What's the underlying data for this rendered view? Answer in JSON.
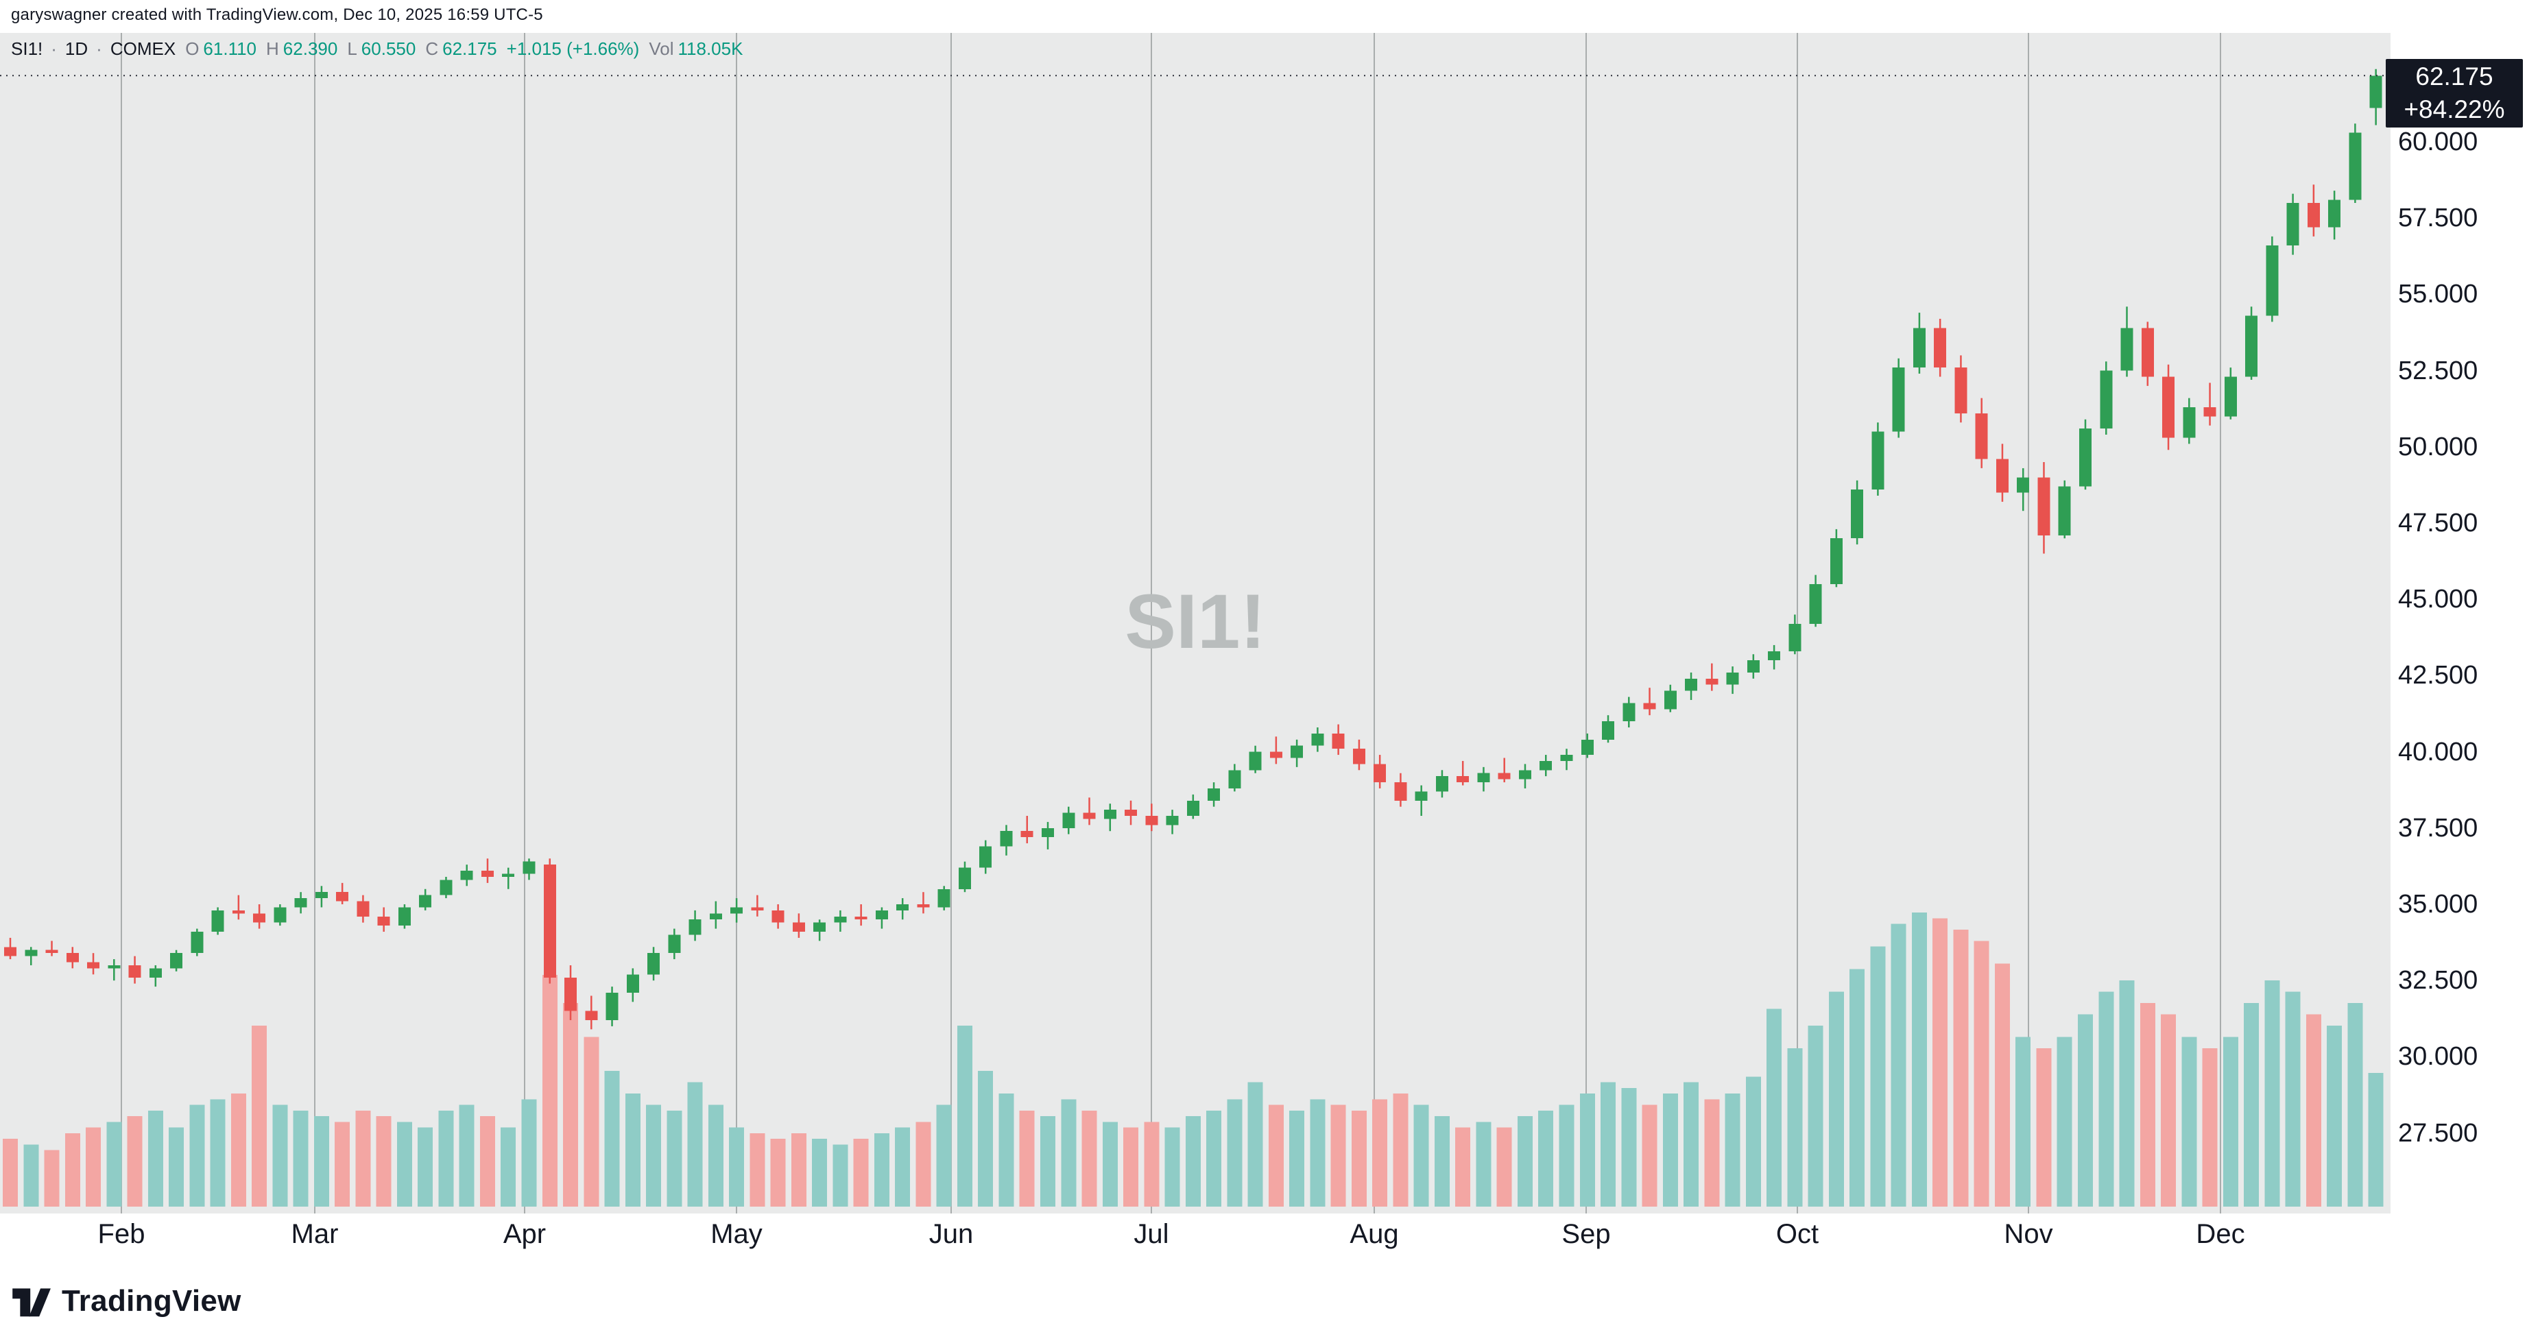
{
  "attribution": "garyswagner created with TradingView.com, Dec 10, 2025 16:59 UTC-5",
  "legend": {
    "symbol": "SI1!",
    "separator": "·",
    "interval": "1D",
    "exchange": "COMEX",
    "ohlc": [
      {
        "label": "O",
        "value": "61.110"
      },
      {
        "label": "H",
        "value": "62.390"
      },
      {
        "label": "L",
        "value": "60.550"
      },
      {
        "label": "C",
        "value": "62.175"
      }
    ],
    "change": "+1.015 (+1.66%)",
    "vol_label": "Vol",
    "vol_value": "118.05K"
  },
  "watermark": "SI1!",
  "last_price": {
    "value": "62.175",
    "change_pct": "+84.22%"
  },
  "price_scale": {
    "labels": [
      "60.000",
      "57.500",
      "55.000",
      "52.500",
      "50.000",
      "47.500",
      "45.000",
      "42.500",
      "40.000",
      "37.500",
      "35.000",
      "32.500",
      "30.000",
      "27.500"
    ]
  },
  "x_axis": {
    "months": [
      "Feb",
      "Mar",
      "Apr",
      "May",
      "Jun",
      "Jul",
      "Aug",
      "Sep",
      "Oct",
      "Nov",
      "Dec"
    ]
  },
  "footer": {
    "brand": "TradingView"
  },
  "colors": {
    "chart_bg": "#e9eaea",
    "grid": "#a9adad",
    "watermark": "#b9bdbd",
    "candle_up": "#2f9e54",
    "candle_down": "#e8524e",
    "vol_up": "#8fccc6",
    "vol_down": "#f3a6a3",
    "last_price_line": "#2a2e39",
    "badge_bg": "#131722",
    "badge_text": "#ffffff",
    "value_green": "#089981",
    "label_dark": "#131722",
    "label_gray": "#787b86"
  },
  "chart_data": {
    "type": "candlestick",
    "symbol": "SI1!",
    "exchange": "COMEX",
    "interval": "1D",
    "title": "SI1! · 1D · COMEX",
    "x_range": "late Jan 2025 – Dec 10 2025",
    "price_axis_ticks": [
      27.5,
      30,
      32.5,
      35,
      37.5,
      40,
      42.5,
      45,
      47.5,
      50,
      52.5,
      55,
      57.5,
      60
    ],
    "price_axis_range": [
      24.9,
      62.5
    ],
    "grid": "vertical month lines only",
    "legend_position": "top-left",
    "last_close": 62.175,
    "last_change_pct": 84.22,
    "volume_unit": "K",
    "volume_axis_max": 260,
    "note": "115 candles approximating the daily series read from the image (~2 trading days per candle); values estimated against the price gridlines",
    "candles_format": [
      "open",
      "high",
      "low",
      "close",
      "volume_k"
    ],
    "candles": [
      [
        33.6,
        33.9,
        33.2,
        33.3,
        60
      ],
      [
        33.3,
        33.6,
        33.0,
        33.5,
        55
      ],
      [
        33.5,
        33.8,
        33.3,
        33.4,
        50
      ],
      [
        33.4,
        33.6,
        32.9,
        33.1,
        65
      ],
      [
        33.1,
        33.4,
        32.7,
        32.9,
        70
      ],
      [
        32.9,
        33.2,
        32.5,
        33.0,
        75
      ],
      [
        33.0,
        33.3,
        32.4,
        32.6,
        80
      ],
      [
        32.6,
        33.0,
        32.3,
        32.9,
        85
      ],
      [
        32.9,
        33.5,
        32.8,
        33.4,
        70
      ],
      [
        33.4,
        34.2,
        33.3,
        34.1,
        90
      ],
      [
        34.1,
        34.9,
        34.0,
        34.8,
        95
      ],
      [
        34.8,
        35.3,
        34.5,
        34.7,
        100
      ],
      [
        34.7,
        35.0,
        34.2,
        34.4,
        160
      ],
      [
        34.4,
        35.0,
        34.3,
        34.9,
        90
      ],
      [
        34.9,
        35.4,
        34.7,
        35.2,
        85
      ],
      [
        35.2,
        35.6,
        34.9,
        35.4,
        80
      ],
      [
        35.4,
        35.7,
        35.0,
        35.1,
        75
      ],
      [
        35.1,
        35.3,
        34.4,
        34.6,
        85
      ],
      [
        34.6,
        34.9,
        34.1,
        34.3,
        80
      ],
      [
        34.3,
        35.0,
        34.2,
        34.9,
        75
      ],
      [
        34.9,
        35.5,
        34.8,
        35.3,
        70
      ],
      [
        35.3,
        35.9,
        35.2,
        35.8,
        85
      ],
      [
        35.8,
        36.3,
        35.6,
        36.1,
        90
      ],
      [
        36.1,
        36.5,
        35.7,
        35.9,
        80
      ],
      [
        35.9,
        36.2,
        35.5,
        36.0,
        70
      ],
      [
        36.0,
        36.5,
        35.8,
        36.4,
        95
      ],
      [
        36.3,
        36.5,
        32.4,
        32.6,
        205
      ],
      [
        32.6,
        33.0,
        31.2,
        31.5,
        180
      ],
      [
        31.5,
        32.0,
        30.9,
        31.2,
        150
      ],
      [
        31.2,
        32.3,
        31.0,
        32.1,
        120
      ],
      [
        32.1,
        32.9,
        31.8,
        32.7,
        100
      ],
      [
        32.7,
        33.6,
        32.5,
        33.4,
        90
      ],
      [
        33.4,
        34.2,
        33.2,
        34.0,
        85
      ],
      [
        34.0,
        34.8,
        33.8,
        34.5,
        110
      ],
      [
        34.5,
        35.1,
        34.2,
        34.7,
        90
      ],
      [
        34.7,
        35.2,
        34.4,
        34.9,
        70
      ],
      [
        34.9,
        35.3,
        34.6,
        34.8,
        65
      ],
      [
        34.8,
        35.0,
        34.2,
        34.4,
        60
      ],
      [
        34.4,
        34.7,
        33.9,
        34.1,
        65
      ],
      [
        34.1,
        34.5,
        33.8,
        34.4,
        60
      ],
      [
        34.4,
        34.8,
        34.1,
        34.6,
        55
      ],
      [
        34.6,
        35.0,
        34.3,
        34.5,
        60
      ],
      [
        34.5,
        34.9,
        34.2,
        34.8,
        65
      ],
      [
        34.8,
        35.2,
        34.5,
        35.0,
        70
      ],
      [
        35.0,
        35.4,
        34.7,
        34.9,
        75
      ],
      [
        34.9,
        35.6,
        34.8,
        35.5,
        90
      ],
      [
        35.5,
        36.4,
        35.4,
        36.2,
        160
      ],
      [
        36.2,
        37.1,
        36.0,
        36.9,
        120
      ],
      [
        36.9,
        37.6,
        36.6,
        37.4,
        100
      ],
      [
        37.4,
        37.9,
        37.0,
        37.2,
        85
      ],
      [
        37.2,
        37.7,
        36.8,
        37.5,
        80
      ],
      [
        37.5,
        38.2,
        37.3,
        38.0,
        95
      ],
      [
        38.0,
        38.5,
        37.6,
        37.8,
        85
      ],
      [
        37.8,
        38.3,
        37.4,
        38.1,
        75
      ],
      [
        38.1,
        38.4,
        37.6,
        37.9,
        70
      ],
      [
        37.9,
        38.3,
        37.4,
        37.6,
        75
      ],
      [
        37.6,
        38.1,
        37.3,
        37.9,
        70
      ],
      [
        37.9,
        38.6,
        37.8,
        38.4,
        80
      ],
      [
        38.4,
        39.0,
        38.2,
        38.8,
        85
      ],
      [
        38.8,
        39.6,
        38.7,
        39.4,
        95
      ],
      [
        39.4,
        40.2,
        39.3,
        40.0,
        110
      ],
      [
        40.0,
        40.5,
        39.6,
        39.8,
        90
      ],
      [
        39.8,
        40.4,
        39.5,
        40.2,
        85
      ],
      [
        40.2,
        40.8,
        40.0,
        40.6,
        95
      ],
      [
        40.6,
        40.9,
        39.9,
        40.1,
        90
      ],
      [
        40.1,
        40.4,
        39.4,
        39.6,
        85
      ],
      [
        39.6,
        39.9,
        38.8,
        39.0,
        95
      ],
      [
        39.0,
        39.3,
        38.2,
        38.4,
        100
      ],
      [
        38.4,
        38.9,
        37.9,
        38.7,
        90
      ],
      [
        38.7,
        39.4,
        38.5,
        39.2,
        80
      ],
      [
        39.2,
        39.7,
        38.9,
        39.0,
        70
      ],
      [
        39.0,
        39.5,
        38.7,
        39.3,
        75
      ],
      [
        39.3,
        39.8,
        39.0,
        39.1,
        70
      ],
      [
        39.1,
        39.6,
        38.8,
        39.4,
        80
      ],
      [
        39.4,
        39.9,
        39.2,
        39.7,
        85
      ],
      [
        39.7,
        40.1,
        39.4,
        39.9,
        90
      ],
      [
        39.9,
        40.6,
        39.8,
        40.4,
        100
      ],
      [
        40.4,
        41.2,
        40.3,
        41.0,
        110
      ],
      [
        41.0,
        41.8,
        40.8,
        41.6,
        105
      ],
      [
        41.6,
        42.1,
        41.2,
        41.4,
        90
      ],
      [
        41.4,
        42.2,
        41.3,
        42.0,
        100
      ],
      [
        42.0,
        42.6,
        41.7,
        42.4,
        110
      ],
      [
        42.4,
        42.9,
        42.0,
        42.2,
        95
      ],
      [
        42.2,
        42.8,
        41.9,
        42.6,
        100
      ],
      [
        42.6,
        43.2,
        42.4,
        43.0,
        115
      ],
      [
        43.0,
        43.5,
        42.7,
        43.3,
        175
      ],
      [
        43.3,
        44.5,
        43.2,
        44.2,
        140
      ],
      [
        44.2,
        45.8,
        44.1,
        45.5,
        160
      ],
      [
        45.5,
        47.3,
        45.4,
        47.0,
        190
      ],
      [
        47.0,
        48.9,
        46.8,
        48.6,
        210
      ],
      [
        48.6,
        50.8,
        48.4,
        50.5,
        230
      ],
      [
        50.5,
        52.9,
        50.3,
        52.6,
        250
      ],
      [
        52.6,
        54.4,
        52.4,
        53.9,
        260
      ],
      [
        53.9,
        54.2,
        52.3,
        52.6,
        255
      ],
      [
        52.6,
        53.0,
        50.8,
        51.1,
        245
      ],
      [
        51.1,
        51.6,
        49.3,
        49.6,
        235
      ],
      [
        49.6,
        50.1,
        48.2,
        48.5,
        215
      ],
      [
        48.5,
        49.3,
        47.9,
        49.0,
        150
      ],
      [
        49.0,
        49.5,
        46.5,
        47.1,
        140
      ],
      [
        47.1,
        48.9,
        47.0,
        48.7,
        150
      ],
      [
        48.7,
        50.9,
        48.6,
        50.6,
        170
      ],
      [
        50.6,
        52.8,
        50.4,
        52.5,
        190
      ],
      [
        52.5,
        54.6,
        52.3,
        53.9,
        200
      ],
      [
        53.9,
        54.1,
        52.0,
        52.3,
        180
      ],
      [
        52.3,
        52.7,
        49.9,
        50.3,
        170
      ],
      [
        50.3,
        51.6,
        50.1,
        51.3,
        150
      ],
      [
        51.3,
        52.1,
        50.7,
        51.0,
        140
      ],
      [
        51.0,
        52.6,
        50.9,
        52.3,
        150
      ],
      [
        52.3,
        54.6,
        52.2,
        54.3,
        180
      ],
      [
        54.3,
        56.9,
        54.1,
        56.6,
        200
      ],
      [
        56.6,
        58.3,
        56.3,
        58.0,
        190
      ],
      [
        58.0,
        58.6,
        56.9,
        57.2,
        170
      ],
      [
        57.2,
        58.4,
        56.8,
        58.1,
        160
      ],
      [
        58.1,
        60.6,
        58.0,
        60.3,
        180
      ],
      [
        61.11,
        62.39,
        60.55,
        62.175,
        118.05
      ]
    ]
  }
}
